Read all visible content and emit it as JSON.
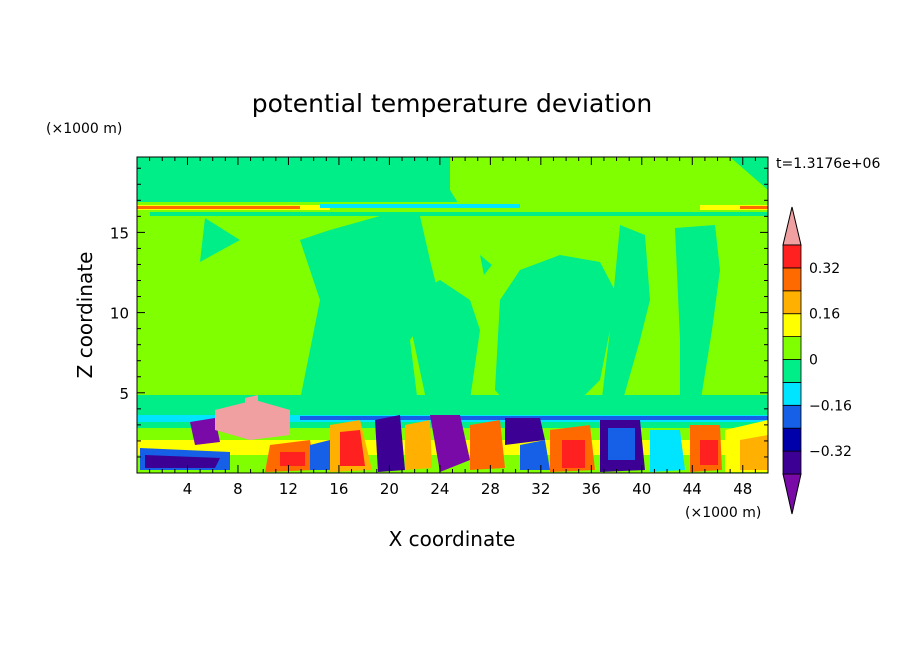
{
  "chart_data": {
    "type": "heatmap",
    "title": "potential temperature deviation",
    "xlabel": "X coordinate",
    "ylabel": "Z coordinate",
    "x_unit": "(×1000 m)",
    "y_unit": "(×1000 m)",
    "time_label": "t=1.3176e+06",
    "xlim": [
      0,
      50
    ],
    "ylim": [
      0,
      19.7
    ],
    "x_ticks": [
      "4",
      "8",
      "12",
      "16",
      "20",
      "24",
      "28",
      "32",
      "36",
      "40",
      "44",
      "48"
    ],
    "x_tick_values": [
      4,
      8,
      12,
      16,
      20,
      24,
      28,
      32,
      36,
      40,
      44,
      48
    ],
    "y_ticks": [
      "5",
      "10",
      "15"
    ],
    "y_tick_values": [
      5,
      10,
      15
    ],
    "colorbar": {
      "levels": [
        -0.48,
        -0.4,
        -0.32,
        -0.24,
        -0.16,
        -0.08,
        0,
        0.08,
        0.16,
        0.24,
        0.32,
        0.4,
        0.48
      ],
      "labels": [
        "0.32",
        "0.16",
        "0",
        "−0.16",
        "−0.32"
      ],
      "label_values": [
        0.32,
        0.16,
        0,
        -0.16,
        -0.32
      ],
      "colors": [
        "#7a0aa8",
        "#3d0095",
        "#0000aa",
        "#1560e6",
        "#00e5ff",
        "#00ee88",
        "#7fff00",
        "#ffff00",
        "#ffb000",
        "#ff6a00",
        "#ff2020",
        "#f0a0a0"
      ]
    }
  }
}
